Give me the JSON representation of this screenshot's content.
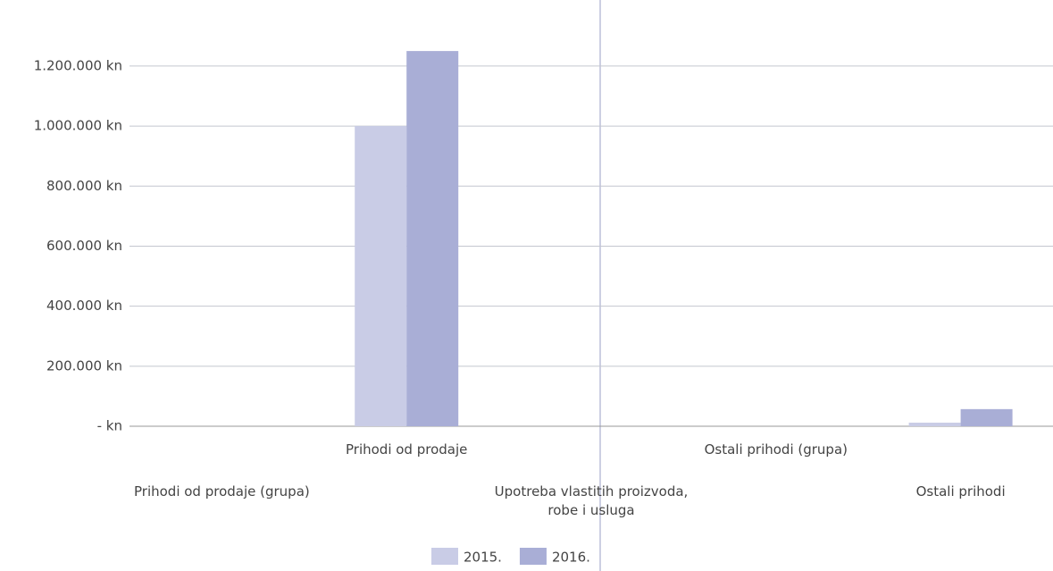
{
  "chart_data": {
    "type": "bar",
    "categories": [
      "Prihodi od prodaje (grupa)",
      "Prihodi od prodaje",
      "Upotreba vlastitih proizvoda, robe i usluga",
      "Ostali prihodi (grupa)",
      "Ostali prihodi"
    ],
    "series": [
      {
        "name": "2015.",
        "color": "#c9cce6",
        "values": [
          0,
          1000000,
          0,
          0,
          12000
        ]
      },
      {
        "name": "2016.",
        "color": "#a9aed6",
        "values": [
          0,
          1250000,
          0,
          0,
          57000
        ]
      }
    ],
    "ylim": [
      0,
      1420000
    ],
    "yticks": [
      {
        "value": 0,
        "label": "- kn"
      },
      {
        "value": 200000,
        "label": "200.000 kn"
      },
      {
        "value": 400000,
        "label": "400.000 kn"
      },
      {
        "value": 600000,
        "label": "600.000 kn"
      },
      {
        "value": 800000,
        "label": "800.000 kn"
      },
      {
        "value": 1000000,
        "label": "1.000.000 kn"
      },
      {
        "value": 1200000,
        "label": "1.200.000 kn"
      }
    ],
    "grid": true,
    "legend": "bottom"
  }
}
